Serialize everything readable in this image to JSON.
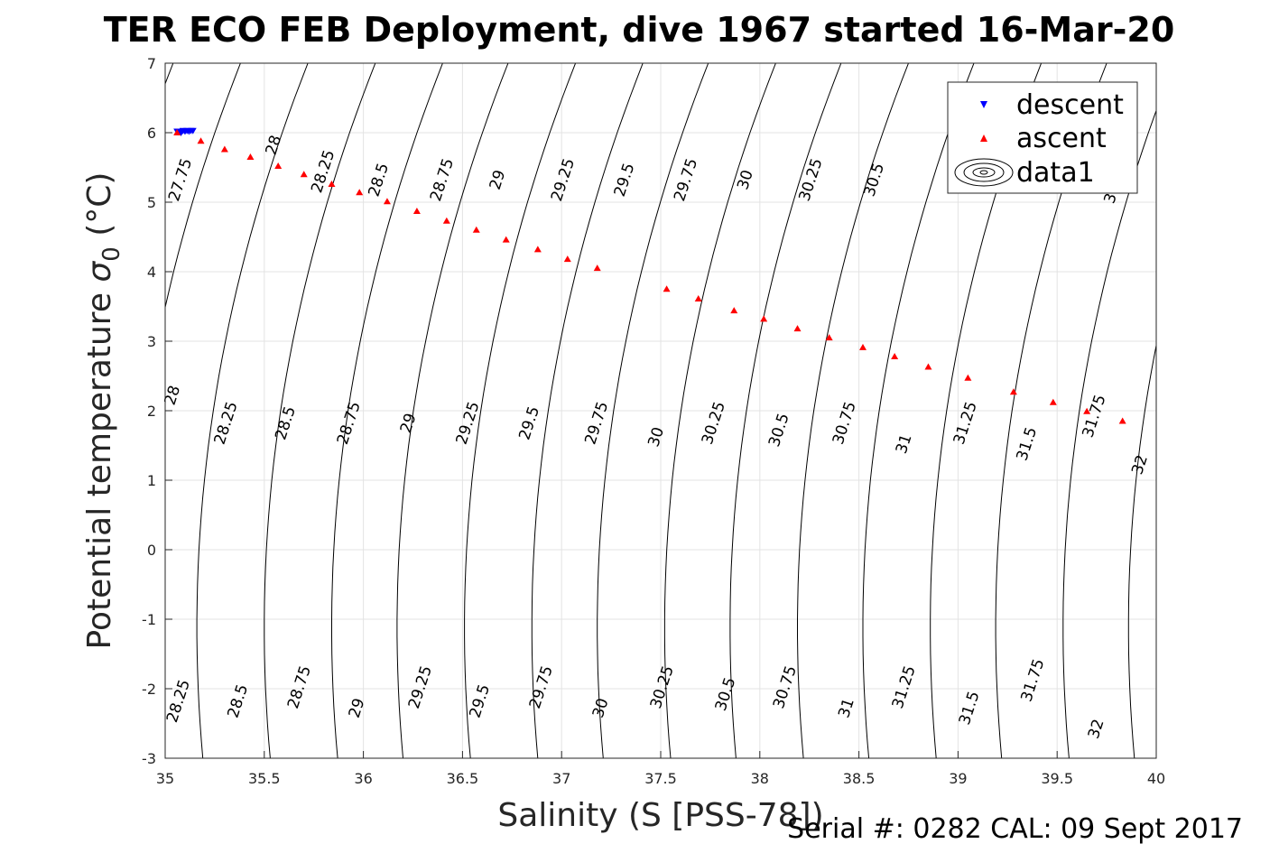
{
  "footer": "Serial #: 0282  CAL: 09 Sept 2017",
  "chart_data": {
    "type": "scatter",
    "title": "TER ECO FEB Deployment, dive 1967 started 16-Mar-20",
    "xlabel": "Salinity (S [PSS-78])",
    "ylabel_main": "Potential temperature ",
    "ylabel_sigma": "σ",
    "ylabel_sub": "0",
    "ylabel_unit": " (°C)",
    "xlim": [
      35,
      40
    ],
    "ylim": [
      -3,
      7
    ],
    "xticks": [
      "35",
      "35.5",
      "36",
      "36.5",
      "37",
      "37.5",
      "38",
      "38.5",
      "39",
      "39.5",
      "40"
    ],
    "yticks": [
      "-3",
      "-2",
      "-1",
      "0",
      "1",
      "2",
      "3",
      "4",
      "5",
      "6",
      "7"
    ],
    "grid": true,
    "legend_position": "top-right",
    "series": [
      {
        "name": "descent",
        "marker": "triangle-down",
        "color": "#0000ff",
        "points": [
          [
            35.06,
            6.02
          ],
          [
            35.07,
            6.01
          ],
          [
            35.08,
            6.02
          ],
          [
            35.09,
            6.03
          ],
          [
            35.1,
            6.02
          ],
          [
            35.11,
            6.03
          ],
          [
            35.12,
            6.02
          ],
          [
            35.13,
            6.03
          ],
          [
            35.14,
            6.03
          ],
          [
            35.08,
            6.0
          ]
        ]
      },
      {
        "name": "ascent",
        "marker": "triangle-up",
        "color": "#ff0000",
        "points": [
          [
            35.06,
            6.0
          ],
          [
            35.18,
            5.88
          ],
          [
            35.3,
            5.76
          ],
          [
            35.43,
            5.65
          ],
          [
            35.57,
            5.52
          ],
          [
            35.7,
            5.4
          ],
          [
            35.84,
            5.26
          ],
          [
            35.98,
            5.14
          ],
          [
            36.12,
            5.01
          ],
          [
            36.27,
            4.87
          ],
          [
            36.42,
            4.73
          ],
          [
            36.57,
            4.6
          ],
          [
            36.72,
            4.46
          ],
          [
            36.88,
            4.32
          ],
          [
            37.03,
            4.18
          ],
          [
            37.18,
            4.05
          ],
          [
            37.53,
            3.75
          ],
          [
            37.69,
            3.61
          ],
          [
            37.87,
            3.44
          ],
          [
            38.02,
            3.32
          ],
          [
            38.19,
            3.18
          ],
          [
            38.35,
            3.05
          ],
          [
            38.52,
            2.91
          ],
          [
            38.68,
            2.78
          ],
          [
            38.85,
            2.63
          ],
          [
            39.05,
            2.47
          ],
          [
            39.28,
            2.27
          ],
          [
            39.48,
            2.12
          ],
          [
            39.65,
            1.99
          ],
          [
            39.83,
            1.85
          ]
        ]
      },
      {
        "name": "data1",
        "marker": "contour",
        "color": "#000000"
      }
    ],
    "contours": {
      "levels": [
        "27.75",
        "28",
        "28.25",
        "28.5",
        "28.75",
        "29",
        "29.25",
        "29.5",
        "29.75",
        "30",
        "30.25",
        "30.5",
        "30.75",
        "31",
        "31.25",
        "31.5",
        "31.75",
        "32"
      ],
      "x_at_sigma_top7": [
        34.92,
        35.04,
        35.38,
        35.72,
        36.06,
        36.4,
        36.73,
        37.07,
        37.41,
        37.74,
        38.08,
        38.41,
        38.75,
        39.08,
        39.42,
        39.75,
        40.09,
        40.42
      ],
      "labels": [
        {
          "level": "27.75",
          "x": 35.1,
          "y": 5.3
        },
        {
          "level": "28",
          "x": 35.57,
          "y": 5.8
        },
        {
          "level": "28.25",
          "x": 35.82,
          "y": 5.42
        },
        {
          "level": "28.5",
          "x": 36.1,
          "y": 5.3
        },
        {
          "level": "28.75",
          "x": 36.42,
          "y": 5.3
        },
        {
          "level": "29",
          "x": 36.7,
          "y": 5.3
        },
        {
          "level": "29.25",
          "x": 37.03,
          "y": 5.3
        },
        {
          "level": "29.5",
          "x": 37.34,
          "y": 5.3
        },
        {
          "level": "29.75",
          "x": 37.65,
          "y": 5.3
        },
        {
          "level": "30",
          "x": 37.95,
          "y": 5.3
        },
        {
          "level": "30.25",
          "x": 38.28,
          "y": 5.3
        },
        {
          "level": "30.5",
          "x": 38.6,
          "y": 5.3
        },
        {
          "level": "28",
          "x": 35.06,
          "y": 2.2
        },
        {
          "level": "28.25",
          "x": 35.33,
          "y": 1.8
        },
        {
          "level": "28.5",
          "x": 35.63,
          "y": 1.8
        },
        {
          "level": "28.75",
          "x": 35.95,
          "y": 1.8
        },
        {
          "level": "29",
          "x": 36.25,
          "y": 1.8
        },
        {
          "level": "29.25",
          "x": 36.55,
          "y": 1.8
        },
        {
          "level": "29.5",
          "x": 36.86,
          "y": 1.8
        },
        {
          "level": "29.75",
          "x": 37.2,
          "y": 1.8
        },
        {
          "level": "30",
          "x": 37.5,
          "y": 1.6
        },
        {
          "level": "30.25",
          "x": 37.79,
          "y": 1.8
        },
        {
          "level": "30.5",
          "x": 38.12,
          "y": 1.7
        },
        {
          "level": "30.75",
          "x": 38.45,
          "y": 1.8
        },
        {
          "level": "31",
          "x": 38.75,
          "y": 1.5
        },
        {
          "level": "31.25",
          "x": 39.06,
          "y": 1.8
        },
        {
          "level": "31.5",
          "x": 39.37,
          "y": 1.5
        },
        {
          "level": "31.75",
          "x": 39.71,
          "y": 1.9
        },
        {
          "level": "32",
          "x": 39.94,
          "y": 1.2
        },
        {
          "level": "31",
          "x": 39.8,
          "y": 5.1
        },
        {
          "level": "28.25",
          "x": 35.09,
          "y": -2.2
        },
        {
          "level": "28.5",
          "x": 35.39,
          "y": -2.2
        },
        {
          "level": "28.75",
          "x": 35.7,
          "y": -2.0
        },
        {
          "level": "29",
          "x": 35.99,
          "y": -2.3
        },
        {
          "level": "29.25",
          "x": 36.31,
          "y": -2.0
        },
        {
          "level": "29.5",
          "x": 36.61,
          "y": -2.2
        },
        {
          "level": "29.75",
          "x": 36.92,
          "y": -2.0
        },
        {
          "level": "30",
          "x": 37.22,
          "y": -2.3
        },
        {
          "level": "30.25",
          "x": 37.53,
          "y": -2.0
        },
        {
          "level": "30.5",
          "x": 37.85,
          "y": -2.1
        },
        {
          "level": "30.75",
          "x": 38.15,
          "y": -2.0
        },
        {
          "level": "31",
          "x": 38.46,
          "y": -2.3
        },
        {
          "level": "31.25",
          "x": 38.75,
          "y": -2.0
        },
        {
          "level": "31.5",
          "x": 39.08,
          "y": -2.3
        },
        {
          "level": "31.75",
          "x": 39.4,
          "y": -1.9
        },
        {
          "level": "32",
          "x": 39.72,
          "y": -2.6
        }
      ]
    }
  }
}
